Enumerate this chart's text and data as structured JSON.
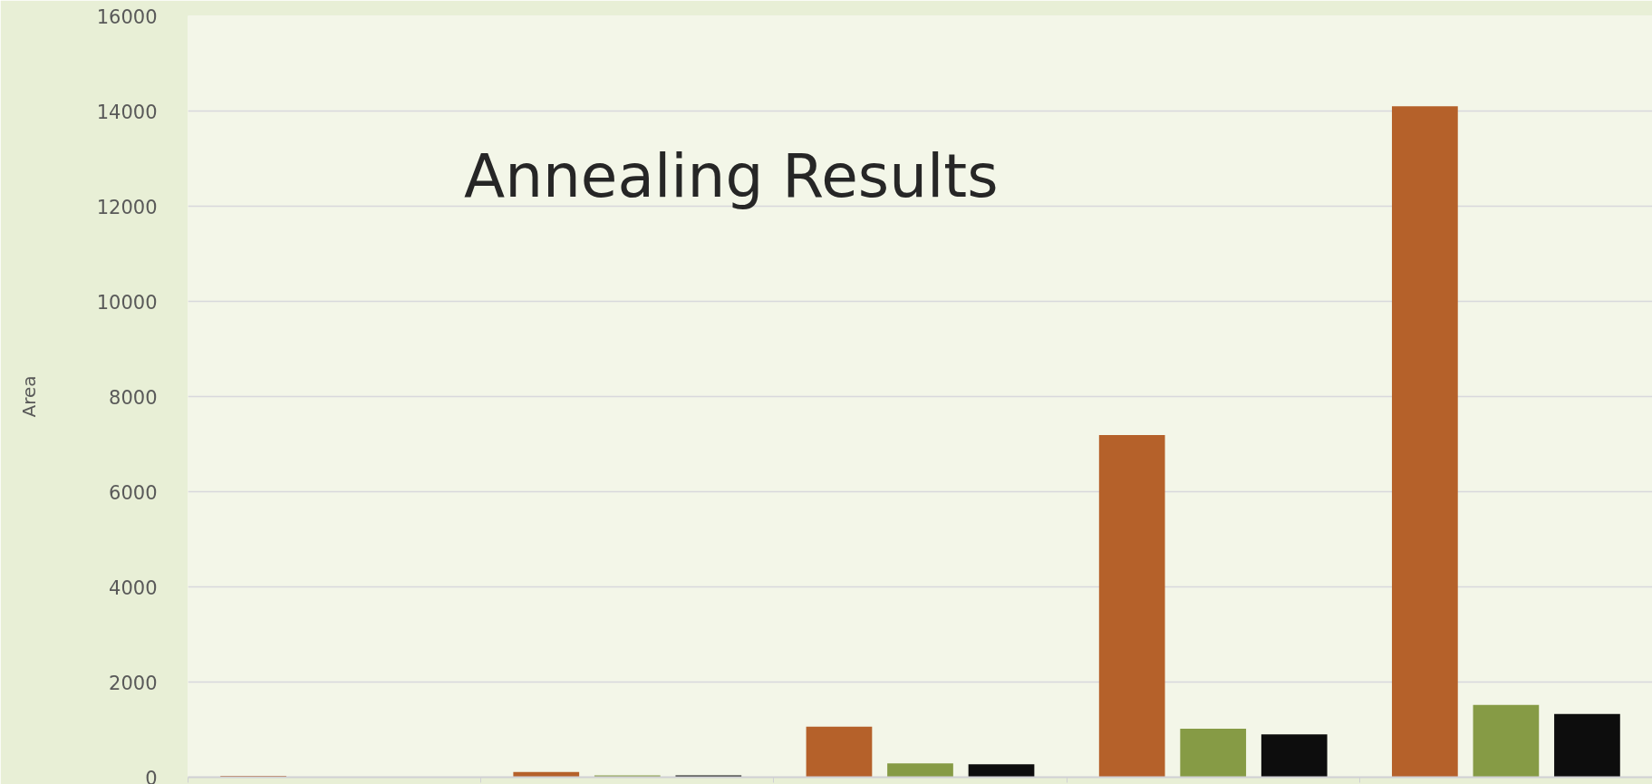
{
  "chart_data": {
    "type": "bar",
    "title": "Annealing Results",
    "ylabel": "Area",
    "categories": [
      null,
      null,
      null,
      null,
      null
    ],
    "series": [
      {
        "color": "#b5612a",
        "values": [
          30,
          110,
          1060,
          7190,
          14100
        ]
      },
      {
        "color": "#869b45",
        "values": [
          null,
          40,
          290,
          1020,
          1520
        ]
      },
      {
        "color": "#0d0d0d",
        "values": [
          null,
          40,
          270,
          900,
          1330
        ]
      }
    ],
    "ylim": [
      0,
      16000
    ],
    "yticks": [
      0,
      2000,
      4000,
      6000,
      8000,
      10000,
      12000,
      14000,
      16000
    ],
    "grid": "y",
    "tick_labels": "y"
  }
}
